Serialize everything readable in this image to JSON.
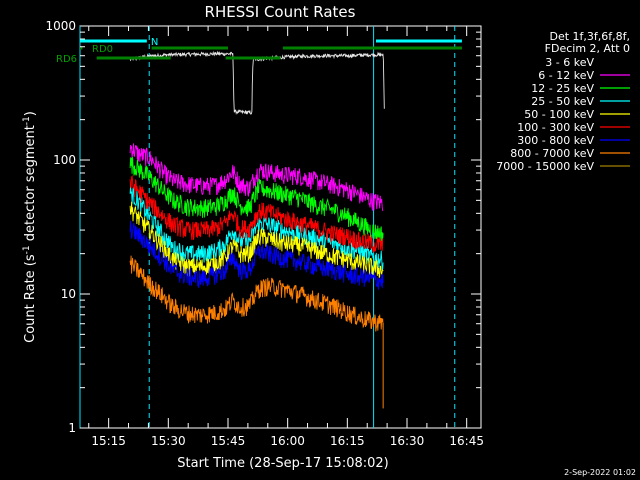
{
  "chart_data": {
    "type": "line",
    "title": "RHESSI Count Rates",
    "xlabel": "Start Time (28-Sep-17 15:08:02)",
    "ylabel_main": "Count Rate (s",
    "ylabel_sup1": "-1",
    "ylabel_mid": " detector segment",
    "ylabel_sup2": "-1",
    "ylabel_end": ")",
    "yscale": "log",
    "ylim": [
      1,
      1000
    ],
    "xlim_minutes": [
      15.13,
      16.81
    ],
    "y_ticks": [
      {
        "value": 1,
        "label": "1"
      },
      {
        "value": 10,
        "label": "10"
      },
      {
        "value": 100,
        "label": "100"
      },
      {
        "value": 1000,
        "label": "1000"
      }
    ],
    "x_ticks": [
      {
        "value": 15.25,
        "label": "15:15"
      },
      {
        "value": 15.5,
        "label": "15:30"
      },
      {
        "value": 15.75,
        "label": "15:45"
      },
      {
        "value": 16.0,
        "label": "16:00"
      },
      {
        "value": 16.25,
        "label": "16:15"
      },
      {
        "value": 16.5,
        "label": "16:30"
      },
      {
        "value": 16.75,
        "label": "16:45"
      }
    ],
    "legend_title_1": "Det 1f,3f,6f,8f,",
    "legend_title_2": "FDecim 2, Att 0",
    "series": [
      {
        "name": "3 - 6 keV",
        "color": "#000000",
        "points": [
          [
            15.34,
            560
          ],
          [
            15.4,
            590
          ],
          [
            15.5,
            610
          ],
          [
            15.6,
            615
          ],
          [
            15.7,
            620
          ],
          [
            15.77,
            620
          ],
          [
            15.775,
            230
          ],
          [
            15.85,
            225
          ],
          [
            15.855,
            560
          ],
          [
            15.95,
            580
          ],
          [
            16.05,
            595
          ],
          [
            16.15,
            600
          ],
          [
            16.25,
            600
          ],
          [
            16.35,
            610
          ],
          [
            16.4,
            610
          ],
          [
            16.405,
            240
          ]
        ]
      },
      {
        "name": "6 - 12 keV",
        "color": "#ff00ff",
        "points": [
          [
            15.34,
            125
          ],
          [
            15.38,
            110
          ],
          [
            15.42,
            105
          ],
          [
            15.48,
            80
          ],
          [
            15.52,
            70
          ],
          [
            15.58,
            66
          ],
          [
            15.64,
            64
          ],
          [
            15.7,
            65
          ],
          [
            15.74,
            72
          ],
          [
            15.77,
            82
          ],
          [
            15.8,
            66
          ],
          [
            15.84,
            62
          ],
          [
            15.88,
            85
          ],
          [
            15.92,
            82
          ],
          [
            15.98,
            78
          ],
          [
            16.05,
            76
          ],
          [
            16.12,
            70
          ],
          [
            16.2,
            64
          ],
          [
            16.25,
            60
          ],
          [
            16.3,
            55
          ],
          [
            16.35,
            50
          ],
          [
            16.4,
            48
          ]
        ]
      },
      {
        "name": "12 - 25 keV",
        "color": "#00ff00",
        "points": [
          [
            15.34,
            95
          ],
          [
            15.38,
            85
          ],
          [
            15.42,
            75
          ],
          [
            15.48,
            58
          ],
          [
            15.52,
            50
          ],
          [
            15.58,
            45
          ],
          [
            15.64,
            44
          ],
          [
            15.7,
            45
          ],
          [
            15.74,
            50
          ],
          [
            15.77,
            58
          ],
          [
            15.8,
            46
          ],
          [
            15.84,
            44
          ],
          [
            15.88,
            62
          ],
          [
            15.92,
            60
          ],
          [
            15.98,
            56
          ],
          [
            16.05,
            52
          ],
          [
            16.12,
            46
          ],
          [
            16.2,
            42
          ],
          [
            16.25,
            38
          ],
          [
            16.3,
            34
          ],
          [
            16.35,
            30
          ],
          [
            16.4,
            28
          ]
        ]
      },
      {
        "name": "25 - 50 keV",
        "color": "#00ffff",
        "points": [
          [
            15.34,
            58
          ],
          [
            15.38,
            48
          ],
          [
            15.42,
            38
          ],
          [
            15.48,
            27
          ],
          [
            15.52,
            22
          ],
          [
            15.58,
            20
          ],
          [
            15.64,
            20
          ],
          [
            15.7,
            21
          ],
          [
            15.74,
            24
          ],
          [
            15.77,
            30
          ],
          [
            15.8,
            25
          ],
          [
            15.84,
            25
          ],
          [
            15.88,
            34
          ],
          [
            15.92,
            33
          ],
          [
            15.98,
            30
          ],
          [
            16.05,
            28
          ],
          [
            16.12,
            26
          ],
          [
            16.2,
            24
          ],
          [
            16.25,
            22
          ],
          [
            16.3,
            21
          ],
          [
            16.35,
            19
          ],
          [
            16.4,
            18
          ]
        ]
      },
      {
        "name": "50 - 100 keV",
        "color": "#ffff00",
        "points": [
          [
            15.34,
            44
          ],
          [
            15.38,
            36
          ],
          [
            15.42,
            30
          ],
          [
            15.48,
            22
          ],
          [
            15.52,
            18
          ],
          [
            15.58,
            16
          ],
          [
            15.64,
            16
          ],
          [
            15.7,
            17
          ],
          [
            15.74,
            19
          ],
          [
            15.77,
            23
          ],
          [
            15.8,
            20
          ],
          [
            15.84,
            20
          ],
          [
            15.88,
            27
          ],
          [
            15.92,
            26
          ],
          [
            15.98,
            24
          ],
          [
            16.05,
            23
          ],
          [
            16.12,
            21
          ],
          [
            16.2,
            19
          ],
          [
            16.25,
            18
          ],
          [
            16.3,
            17
          ],
          [
            16.35,
            16
          ],
          [
            16.4,
            15
          ]
        ]
      },
      {
        "name": "100 - 300 keV",
        "color": "#ff0000",
        "points": [
          [
            15.34,
            68
          ],
          [
            15.38,
            58
          ],
          [
            15.42,
            48
          ],
          [
            15.48,
            38
          ],
          [
            15.52,
            33
          ],
          [
            15.58,
            30
          ],
          [
            15.64,
            30
          ],
          [
            15.7,
            31
          ],
          [
            15.74,
            34
          ],
          [
            15.77,
            40
          ],
          [
            15.8,
            31
          ],
          [
            15.84,
            31
          ],
          [
            15.88,
            42
          ],
          [
            15.92,
            41
          ],
          [
            15.98,
            37
          ],
          [
            16.05,
            34
          ],
          [
            16.12,
            31
          ],
          [
            16.2,
            28
          ],
          [
            16.25,
            27
          ],
          [
            16.3,
            25
          ],
          [
            16.35,
            24
          ],
          [
            16.4,
            23
          ]
        ]
      },
      {
        "name": "300 - 800 keV",
        "color": "#0000ff",
        "points": [
          [
            15.34,
            31
          ],
          [
            15.38,
            27
          ],
          [
            15.42,
            23
          ],
          [
            15.48,
            18
          ],
          [
            15.52,
            15
          ],
          [
            15.58,
            13.5
          ],
          [
            15.64,
            13
          ],
          [
            15.7,
            14
          ],
          [
            15.74,
            15
          ],
          [
            15.77,
            19
          ],
          [
            15.8,
            15
          ],
          [
            15.84,
            15
          ],
          [
            15.88,
            21
          ],
          [
            15.92,
            20
          ],
          [
            15.98,
            18.5
          ],
          [
            16.05,
            17.5
          ],
          [
            16.12,
            16
          ],
          [
            16.2,
            15
          ],
          [
            16.25,
            14
          ],
          [
            16.3,
            13.5
          ],
          [
            16.35,
            13
          ],
          [
            16.4,
            12.5
          ]
        ]
      },
      {
        "name": "800 - 7000 keV",
        "color": "#ff8000",
        "points": [
          [
            15.34,
            17
          ],
          [
            15.38,
            14.5
          ],
          [
            15.42,
            12
          ],
          [
            15.48,
            9.5
          ],
          [
            15.52,
            8
          ],
          [
            15.58,
            7.2
          ],
          [
            15.64,
            7
          ],
          [
            15.7,
            7.3
          ],
          [
            15.74,
            7.8
          ],
          [
            15.77,
            9
          ],
          [
            15.8,
            8
          ],
          [
            15.84,
            8.2
          ],
          [
            15.88,
            11
          ],
          [
            15.92,
            11.5
          ],
          [
            15.98,
            11
          ],
          [
            16.05,
            10
          ],
          [
            16.12,
            9
          ],
          [
            16.2,
            8
          ],
          [
            16.25,
            7.3
          ],
          [
            16.3,
            6.7
          ],
          [
            16.35,
            6.3
          ],
          [
            16.4,
            6.1
          ]
        ]
      },
      {
        "name": "7000 - 15000 keV",
        "color": "#a08000",
        "points": []
      }
    ],
    "vertical_lines_minutes": [
      15.13,
      15.42,
      16.36,
      16.7
    ],
    "bars": [
      {
        "label": "N",
        "color": "#00ffff",
        "row": "N",
        "from": 15.13,
        "to": 15.41
      },
      {
        "label": "",
        "color": "#00ffff",
        "row": "N",
        "from": 16.37,
        "to": 16.73
      },
      {
        "label": "RD0",
        "color": "#008000",
        "row": "RD0",
        "from": 15.13,
        "to": 15.14
      },
      {
        "label": "",
        "color": "#008000",
        "row": "RD0",
        "from": 15.43,
        "to": 15.75
      },
      {
        "label": "",
        "color": "#008000",
        "row": "RD0",
        "from": 15.98,
        "to": 16.73
      },
      {
        "label": "RD6",
        "color": "#008000",
        "row": "RD6",
        "from": 15.2,
        "to": 15.51
      },
      {
        "label": "",
        "color": "#008000",
        "row": "RD6",
        "from": 15.74,
        "to": 15.97
      }
    ],
    "grid": false,
    "legend_position": "right"
  },
  "footer_stamp": "2-Sep-2022 01:02"
}
